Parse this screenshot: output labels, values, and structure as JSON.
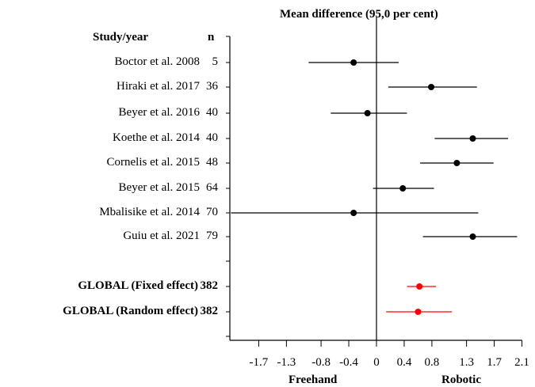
{
  "chart_data": {
    "type": "forest",
    "title": "Mean difference (95,0 per cent)",
    "study_header": "Study/year",
    "n_header": "n",
    "xlabel_left": "Freehand",
    "xlabel_right": "Robotic",
    "xlim": [
      -2.1,
      2.1
    ],
    "x_ticks": [
      "-1.7",
      "-1.3",
      "-0.8",
      "-0.4",
      "0",
      "0.4",
      "0.8",
      "1.3",
      "1.7",
      "2.1"
    ],
    "studies": [
      {
        "label": "Boctor et al. 2008",
        "n": "5",
        "mean": -0.33,
        "lower": -0.98,
        "upper": 0.32
      },
      {
        "label": "Hiraki et al. 2017",
        "n": "36",
        "mean": 0.79,
        "lower": 0.17,
        "upper": 1.45
      },
      {
        "label": "Beyer et al. 2016",
        "n": "40",
        "mean": -0.13,
        "lower": -0.66,
        "upper": 0.44
      },
      {
        "label": "Koethe et al. 2014",
        "n": "40",
        "mean": 1.39,
        "lower": 0.84,
        "upper": 1.9
      },
      {
        "label": "Cornelis et al. 2015",
        "n": "48",
        "mean": 1.16,
        "lower": 0.63,
        "upper": 1.69
      },
      {
        "label": "Beyer et al. 2015",
        "n": "64",
        "mean": 0.38,
        "lower": -0.05,
        "upper": 0.83
      },
      {
        "label": "Mbalisike et al. 2014",
        "n": "70",
        "mean": -0.33,
        "lower": -2.1,
        "upper": 1.47
      },
      {
        "label": "Guiu et al. 2021",
        "n": "79",
        "mean": 1.39,
        "lower": 0.67,
        "upper": 2.03
      }
    ],
    "global": [
      {
        "label": "GLOBAL (Fixed effect)",
        "n": "382",
        "mean": 0.62,
        "lower": 0.44,
        "upper": 0.86
      },
      {
        "label": "GLOBAL (Random effect)",
        "n": "382",
        "mean": 0.6,
        "lower": 0.14,
        "upper": 1.09
      }
    ],
    "colors": {
      "study": "#000000",
      "global": "#ff0000",
      "axis": "#000000"
    }
  }
}
